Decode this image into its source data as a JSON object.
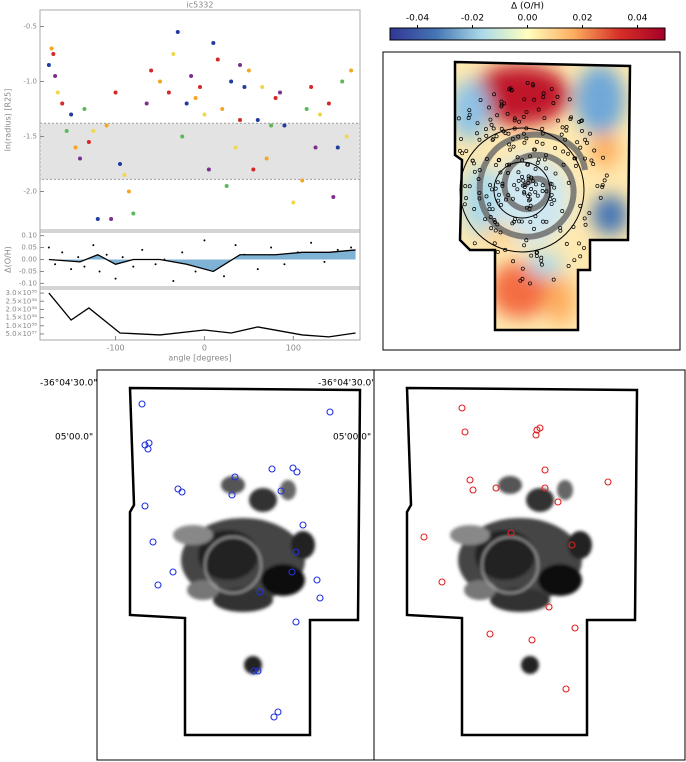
{
  "chart_data": [
    {
      "type": "scatter",
      "title": "ic5332",
      "ylabel": "ln(radius) [R25]",
      "xlim": [
        -185,
        175
      ],
      "ylim": [
        -2.35,
        -0.35
      ],
      "yticks": [
        -0.5,
        {
          "value": -1,
          "label": "-1.0"
        },
        -1.5,
        {
          "value": -2,
          "label": "-2.0"
        }
      ],
      "band": [
        -1.38,
        -1.89
      ],
      "band_color": "#e3e3e3",
      "series": [
        {
          "color": "#d62728",
          "x": [
            -170,
            -160,
            -130,
            -100,
            -60,
            -40,
            -5,
            15,
            40,
            55,
            80,
            120,
            140
          ],
          "values": [
            -0.75,
            -1.2,
            -1.55,
            -1.1,
            -0.9,
            -1.1,
            -1.05,
            -0.8,
            -1.35,
            -1.8,
            -1.15,
            -1.05,
            -1.2
          ]
        },
        {
          "color": "#1f3c9e",
          "x": [
            -175,
            -150,
            -120,
            -95,
            -30,
            -20,
            10,
            30,
            45,
            60,
            90,
            150
          ],
          "values": [
            -0.85,
            -1.3,
            -2.25,
            -1.75,
            -0.55,
            -1.2,
            -0.65,
            -1.0,
            -1.05,
            -1.35,
            -1.4,
            -1.6
          ]
        },
        {
          "color": "#f5a623",
          "x": [
            -172,
            -145,
            -110,
            -85,
            -50,
            -10,
            20,
            50,
            70,
            110,
            165
          ],
          "values": [
            -0.7,
            -1.6,
            -1.4,
            -2.0,
            -1.0,
            -1.15,
            -1.25,
            -0.9,
            -1.7,
            -1.9,
            -0.9
          ]
        },
        {
          "color": "#f0d84a",
          "x": [
            -165,
            -125,
            -90,
            -35,
            0,
            35,
            65,
            100,
            130,
            160
          ],
          "values": [
            -1.1,
            -1.45,
            -1.85,
            -0.75,
            -1.3,
            -1.6,
            -1.05,
            -2.1,
            -1.3,
            -1.5
          ]
        },
        {
          "color": "#5cb85c",
          "x": [
            -155,
            -135,
            -80,
            -25,
            25,
            75,
            115,
            155
          ],
          "values": [
            -1.45,
            -1.25,
            -2.2,
            -1.5,
            -1.95,
            -1.4,
            -1.25,
            -1.0
          ]
        },
        {
          "color": "#7b2f8e",
          "x": [
            -168,
            -140,
            -105,
            -65,
            -15,
            5,
            40,
            85,
            125,
            145
          ],
          "values": [
            -0.95,
            -1.7,
            -2.25,
            -1.2,
            -0.95,
            -1.8,
            -0.85,
            -1.1,
            -1.6,
            -2.05
          ]
        }
      ]
    },
    {
      "type": "line",
      "ylabel": "Δ(O/H)",
      "xlim": [
        -185,
        175
      ],
      "ylim": [
        -0.115,
        0.115
      ],
      "yticks": [
        {
          "value": 0.1,
          "label": "0.10"
        },
        0.05,
        {
          "value": 0,
          "label": "0.00"
        },
        -0.05,
        {
          "value": -0.1,
          "label": "-0.10"
        }
      ],
      "series": [
        {
          "mode": "markers",
          "color": "#000000",
          "x": [
            -175,
            -168,
            -160,
            -150,
            -142,
            -135,
            -125,
            -118,
            -110,
            -100,
            -92,
            -80,
            -70,
            -55,
            -45,
            -35,
            -25,
            -10,
            0,
            10,
            22,
            35,
            45,
            60,
            75,
            90,
            105,
            120,
            135,
            150,
            165
          ],
          "values": [
            0.05,
            -0.02,
            0.03,
            -0.04,
            0.01,
            -0.03,
            0.06,
            -0.05,
            0.02,
            -0.08,
            0.01,
            -0.03,
            0.04,
            -0.02,
            0.0,
            -0.09,
            0.03,
            -0.05,
            0.08,
            -0.03,
            -0.07,
            0.06,
            0.02,
            -0.04,
            0.05,
            -0.02,
            0.03,
            0.07,
            -0.01,
            0.04,
            0.05
          ]
        },
        {
          "mode": "lines",
          "color": "#000000",
          "fill": "#7fb3d5",
          "x": [
            -175,
            -140,
            -120,
            -100,
            -80,
            -50,
            -20,
            10,
            40,
            80,
            110,
            140,
            170
          ],
          "values": [
            0.0,
            -0.01,
            0.02,
            -0.02,
            0.0,
            0.0,
            -0.02,
            -0.05,
            0.02,
            0.02,
            0.03,
            0.03,
            0.04
          ]
        }
      ]
    },
    {
      "type": "line",
      "xlabel": "angle [degrees]",
      "xlim": [
        -185,
        175
      ],
      "ylim": [
        1.3e+37,
        3.25e+38
      ],
      "xticks": [
        -100,
        0,
        100
      ],
      "yticks": [
        {
          "value": 3e+38,
          "label": "3.0×10³⁸"
        },
        {
          "value": 2.5e+38,
          "label": "2.5×10³⁸"
        },
        {
          "value": 2e+38,
          "label": "2.0×10³⁸"
        },
        {
          "value": 1.5e+38,
          "label": "1.5×10³⁸"
        },
        {
          "value": 1e+38,
          "label": "1.0×10³⁸"
        },
        {
          "value": 5e+37,
          "label": "5.0×10³⁷"
        }
      ],
      "series": [
        {
          "mode": "lines",
          "color": "#000000",
          "x": [
            -175,
            -150,
            -130,
            -95,
            -50,
            0,
            30,
            60,
            110,
            140,
            170
          ],
          "values": [
            3e+38,
            1.35e+38,
            2.09e+38,
            5.6e+37,
            4.4e+37,
            7.4e+37,
            5.6e+37,
            9.3e+37,
            4.4e+37,
            3.2e+37,
            5.6e+37
          ]
        }
      ]
    },
    {
      "type": "colorbar",
      "title": "Δ (O/H)",
      "xlim": [
        -0.05,
        0.05
      ],
      "xticks": [
        -0.04,
        -0.02,
        {
          "value": 0,
          "label": "0.00"
        },
        0.02,
        0.04
      ],
      "colormap": [
        "#313695",
        "#4575b4",
        "#abd9e9",
        "#ffffbf",
        "#fdae61",
        "#d73027",
        "#a50026"
      ]
    }
  ],
  "images": [
    {
      "labels": [
        "-36°04'30.0\"",
        "05'00.0\""
      ]
    },
    {
      "labels": [
        "-36°04'30.0\"",
        "05'00.0\""
      ]
    }
  ]
}
